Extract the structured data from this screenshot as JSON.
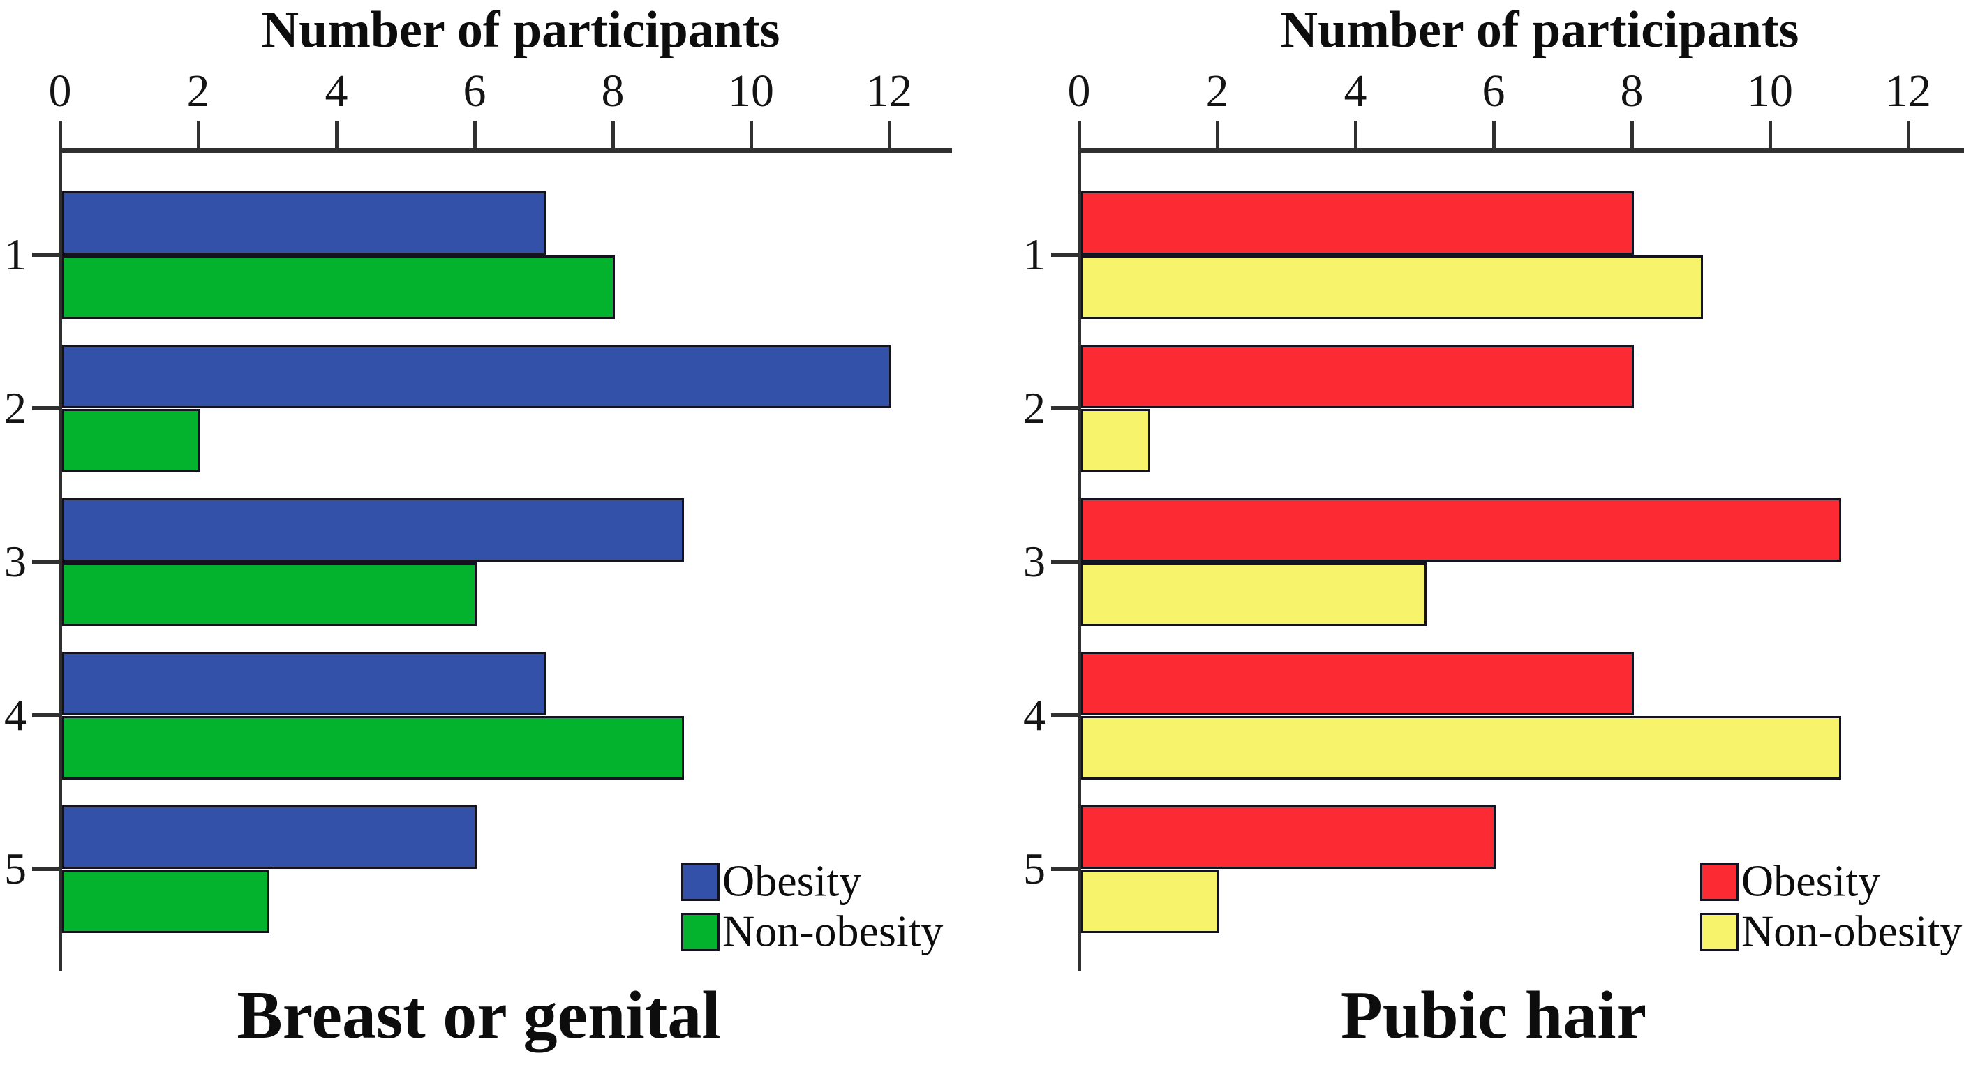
{
  "page": {
    "background_color": "#ffffff",
    "figure_type": "two horizontal grouped bar charts"
  },
  "chart_data": [
    {
      "type": "bar",
      "orientation": "horizontal",
      "title": "Breast or genital",
      "xlabel": "Number of participants",
      "xlim": [
        0,
        13
      ],
      "x_ticks": [
        0,
        2,
        4,
        6,
        8,
        10,
        12
      ],
      "categories": [
        "1",
        "2",
        "3",
        "4",
        "5"
      ],
      "series": [
        {
          "name": "Obesity",
          "color": "#3351a8",
          "values": [
            7,
            12,
            9,
            7,
            6
          ]
        },
        {
          "name": "Non-obesity",
          "color": "#04b32d",
          "values": [
            8,
            2,
            6,
            9,
            3
          ]
        }
      ],
      "legend_position": "inside-bottom-right",
      "grid": false,
      "axis_color": "#303030",
      "bar_border_color": "#13131f"
    },
    {
      "type": "bar",
      "orientation": "horizontal",
      "title": "Pubic hair",
      "xlabel": "Number of participants",
      "xlim": [
        0,
        13
      ],
      "x_ticks": [
        0,
        2,
        4,
        6,
        8,
        10,
        12
      ],
      "categories": [
        "1",
        "2",
        "3",
        "4",
        "5"
      ],
      "series": [
        {
          "name": "Obesity",
          "color": "#fb2a33",
          "values": [
            8,
            8,
            11,
            8,
            6
          ]
        },
        {
          "name": "Non-obesity",
          "color": "#f7f46c",
          "values": [
            9,
            1,
            5,
            11,
            2
          ]
        }
      ],
      "legend_position": "inside-bottom-right",
      "grid": false,
      "axis_color": "#303030",
      "bar_border_color": "#13131f"
    }
  ]
}
